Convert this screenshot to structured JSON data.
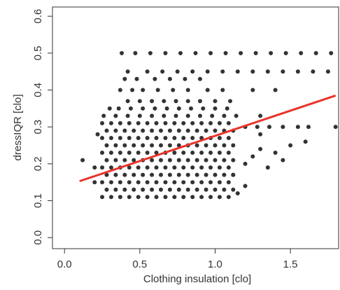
{
  "chart_data": {
    "type": "scatter",
    "x_label": "Clothing insulation [clo]",
    "y_label": "dressIQR [clo]",
    "xlim": [
      -0.08,
      1.82
    ],
    "ylim": [
      -0.03,
      0.625
    ],
    "xticks": [
      {
        "value": 0,
        "label": "0.0"
      },
      0.5,
      {
        "value": 1,
        "label": "1.0"
      },
      1.5
    ],
    "yticks": [
      {
        "value": 0,
        "label": "0.0"
      },
      0.1,
      0.2,
      0.3,
      0.4,
      0.5,
      0.6
    ],
    "color": "#333333",
    "x": [
      0.38,
      0.47,
      0.57,
      0.67,
      0.77,
      0.87,
      0.97,
      1.07,
      1.17,
      1.27,
      1.37,
      1.47,
      1.57,
      1.67,
      1.77,
      0.42,
      0.55,
      0.65,
      0.75,
      0.85,
      0.95,
      1.05,
      1.15,
      1.25,
      1.35,
      1.45,
      1.55,
      1.65,
      1.75,
      0.4,
      0.48,
      0.6,
      0.7,
      0.8,
      0.9,
      0.37,
      0.45,
      0.52,
      0.62,
      0.72,
      0.82,
      0.95,
      1.05,
      1.25,
      1.4,
      0.42,
      0.5,
      0.58,
      0.66,
      0.74,
      0.82,
      0.9,
      1.0,
      1.1,
      0.3,
      0.36,
      0.44,
      0.52,
      0.6,
      0.68,
      0.76,
      0.84,
      0.92,
      1.0,
      1.08,
      0.26,
      0.34,
      0.42,
      0.5,
      0.58,
      0.66,
      0.74,
      0.82,
      0.9,
      0.98,
      1.06,
      1.14,
      1.3,
      1.2,
      1.28,
      1.36,
      1.45,
      1.55,
      1.62,
      1.8,
      0.25,
      0.31,
      0.37,
      0.43,
      0.49,
      0.55,
      0.61,
      0.67,
      0.73,
      0.79,
      0.85,
      0.91,
      0.97,
      1.03,
      1.09,
      0.28,
      0.34,
      0.4,
      0.46,
      0.52,
      0.58,
      0.64,
      0.7,
      0.76,
      0.82,
      0.88,
      0.94,
      1.0,
      1.06,
      1.12,
      0.25,
      0.31,
      0.37,
      0.43,
      0.49,
      0.55,
      0.61,
      0.67,
      0.73,
      0.79,
      0.85,
      0.91,
      0.97,
      1.03,
      1.09,
      0.28,
      0.34,
      0.4,
      0.46,
      0.52,
      0.58,
      0.64,
      0.7,
      0.76,
      0.82,
      0.88,
      0.94,
      1.0,
      1.06,
      1.12,
      0.25,
      0.31,
      0.37,
      0.43,
      0.49,
      0.55,
      0.61,
      0.67,
      0.73,
      0.79,
      0.85,
      0.91,
      0.97,
      1.03,
      1.09,
      0.28,
      0.34,
      0.4,
      0.46,
      0.52,
      0.58,
      0.64,
      0.7,
      0.76,
      0.82,
      0.88,
      0.94,
      1.0,
      1.06,
      1.12,
      0.25,
      0.31,
      0.37,
      0.43,
      0.49,
      0.55,
      0.61,
      0.67,
      0.73,
      0.79,
      0.85,
      0.91,
      0.97,
      1.03,
      1.09,
      0.28,
      0.34,
      0.4,
      0.46,
      0.52,
      0.58,
      0.64,
      0.7,
      0.76,
      0.82,
      0.88,
      0.94,
      1.0,
      1.06,
      1.12,
      0.25,
      0.31,
      0.37,
      0.43,
      0.49,
      0.55,
      0.61,
      0.67,
      0.73,
      0.79,
      0.85,
      0.91,
      0.97,
      1.03,
      1.09,
      0.28,
      0.34,
      0.4,
      0.46,
      0.52,
      0.58,
      0.64,
      0.7,
      0.76,
      0.82,
      0.88,
      0.94,
      1.0,
      1.06,
      1.12,
      0.25,
      0.31,
      0.37,
      0.43,
      0.49,
      0.55,
      0.61,
      0.67,
      0.73,
      0.79,
      0.85,
      0.91,
      0.97,
      1.03,
      1.09,
      1.2,
      1.25,
      1.3,
      1.35,
      1.4,
      1.5,
      1.2,
      1.15,
      1.45,
      1.6,
      1.3,
      1.12,
      0.12,
      0.2,
      0.22,
      0.2
    ],
    "values": [
      0.5,
      0.5,
      0.5,
      0.5,
      0.5,
      0.5,
      0.5,
      0.5,
      0.5,
      0.5,
      0.5,
      0.5,
      0.5,
      0.5,
      0.5,
      0.45,
      0.45,
      0.45,
      0.45,
      0.45,
      0.45,
      0.45,
      0.45,
      0.45,
      0.45,
      0.45,
      0.45,
      0.45,
      0.45,
      0.43,
      0.43,
      0.43,
      0.43,
      0.43,
      0.43,
      0.4,
      0.4,
      0.4,
      0.4,
      0.4,
      0.4,
      0.4,
      0.4,
      0.4,
      0.4,
      0.37,
      0.37,
      0.37,
      0.37,
      0.37,
      0.37,
      0.37,
      0.37,
      0.37,
      0.35,
      0.35,
      0.35,
      0.35,
      0.35,
      0.35,
      0.35,
      0.35,
      0.35,
      0.35,
      0.35,
      0.33,
      0.33,
      0.33,
      0.33,
      0.33,
      0.33,
      0.33,
      0.33,
      0.33,
      0.33,
      0.33,
      0.33,
      0.33,
      0.3,
      0.3,
      0.3,
      0.3,
      0.3,
      0.3,
      0.3,
      0.31,
      0.31,
      0.31,
      0.31,
      0.31,
      0.31,
      0.31,
      0.31,
      0.31,
      0.31,
      0.31,
      0.31,
      0.31,
      0.31,
      0.31,
      0.29,
      0.29,
      0.29,
      0.29,
      0.29,
      0.29,
      0.29,
      0.29,
      0.29,
      0.29,
      0.29,
      0.29,
      0.29,
      0.29,
      0.29,
      0.27,
      0.27,
      0.27,
      0.27,
      0.27,
      0.27,
      0.27,
      0.27,
      0.27,
      0.27,
      0.27,
      0.27,
      0.27,
      0.27,
      0.27,
      0.25,
      0.25,
      0.25,
      0.25,
      0.25,
      0.25,
      0.25,
      0.25,
      0.25,
      0.25,
      0.25,
      0.25,
      0.25,
      0.25,
      0.25,
      0.23,
      0.23,
      0.23,
      0.23,
      0.23,
      0.23,
      0.23,
      0.23,
      0.23,
      0.23,
      0.23,
      0.23,
      0.23,
      0.23,
      0.23,
      0.21,
      0.21,
      0.21,
      0.21,
      0.21,
      0.21,
      0.21,
      0.21,
      0.21,
      0.21,
      0.21,
      0.21,
      0.21,
      0.21,
      0.21,
      0.19,
      0.19,
      0.19,
      0.19,
      0.19,
      0.19,
      0.19,
      0.19,
      0.19,
      0.19,
      0.19,
      0.19,
      0.19,
      0.19,
      0.19,
      0.17,
      0.17,
      0.17,
      0.17,
      0.17,
      0.17,
      0.17,
      0.17,
      0.17,
      0.17,
      0.17,
      0.17,
      0.17,
      0.17,
      0.17,
      0.15,
      0.15,
      0.15,
      0.15,
      0.15,
      0.15,
      0.15,
      0.15,
      0.15,
      0.15,
      0.15,
      0.15,
      0.15,
      0.15,
      0.15,
      0.13,
      0.13,
      0.13,
      0.13,
      0.13,
      0.13,
      0.13,
      0.13,
      0.13,
      0.13,
      0.13,
      0.13,
      0.13,
      0.13,
      0.13,
      0.11,
      0.11,
      0.11,
      0.11,
      0.11,
      0.11,
      0.11,
      0.11,
      0.11,
      0.11,
      0.11,
      0.11,
      0.11,
      0.11,
      0.11,
      0.2,
      0.22,
      0.24,
      0.19,
      0.23,
      0.25,
      0.14,
      0.12,
      0.21,
      0.26,
      0.28,
      0.17,
      0.21,
      0.15,
      0.28,
      0.19
    ],
    "fit_line": {
      "x": [
        0.1,
        1.8
      ],
      "values": [
        0.153,
        0.385
      ],
      "color": "#e8342a"
    }
  }
}
